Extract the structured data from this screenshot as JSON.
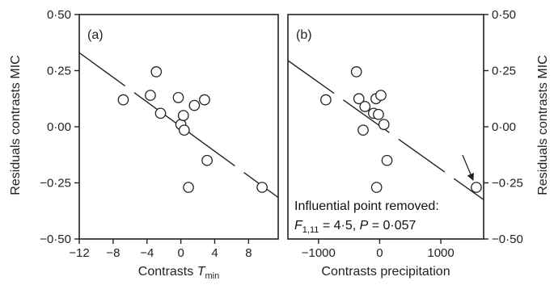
{
  "chart_data": [
    {
      "type": "scatter",
      "panel_label": "(a)",
      "xlabel_main": "Contrasts ",
      "xlabel_italic": "T",
      "xlabel_sub": "min",
      "ylabel": "Residuals contrasts MIC",
      "xlim": [
        -12,
        11.5
      ],
      "ylim": [
        -0.5,
        0.5
      ],
      "x_ticks": [
        -12,
        -8,
        -4,
        0,
        4,
        8
      ],
      "x_tick_labels": [
        "−12",
        "−8",
        "−4",
        "0",
        "4",
        "8"
      ],
      "y_ticks": [
        0.5,
        0.25,
        0.0,
        -0.25,
        -0.5
      ],
      "y_tick_labels": [
        "0·50",
        "0·25",
        "0·00",
        "−0·25",
        "−0·50"
      ],
      "points": [
        {
          "x": -6.8,
          "y": 0.12
        },
        {
          "x": -3.6,
          "y": 0.14
        },
        {
          "x": -2.9,
          "y": 0.245
        },
        {
          "x": -2.4,
          "y": 0.06
        },
        {
          "x": -0.3,
          "y": 0.13
        },
        {
          "x": 0.0,
          "y": 0.01
        },
        {
          "x": 0.3,
          "y": 0.05
        },
        {
          "x": 0.4,
          "y": -0.015
        },
        {
          "x": 1.6,
          "y": 0.095
        },
        {
          "x": 2.8,
          "y": 0.12
        },
        {
          "x": 3.1,
          "y": -0.15
        },
        {
          "x": 0.9,
          "y": -0.27
        },
        {
          "x": 9.6,
          "y": -0.27
        }
      ],
      "fit_line": {
        "x": [
          -12,
          11.5
        ],
        "y": [
          0.33,
          -0.315
        ]
      }
    },
    {
      "type": "scatter",
      "panel_label": "(b)",
      "xlabel": "Contrasts precipitation",
      "ylabel": "Residuals contrasts MIC",
      "xlim": [
        -1500,
        1700
      ],
      "ylim": [
        -0.5,
        0.5
      ],
      "x_ticks": [
        -1000,
        0,
        1000
      ],
      "x_tick_labels": [
        "−1000",
        "0",
        "1000"
      ],
      "y_ticks": [
        0.5,
        0.25,
        0.0,
        -0.25,
        -0.5
      ],
      "y_tick_labels": [
        "0·50",
        "0·25",
        "0·00",
        "−0·25",
        "−0·50"
      ],
      "points": [
        {
          "x": -880,
          "y": 0.12
        },
        {
          "x": -380,
          "y": 0.245
        },
        {
          "x": -340,
          "y": 0.125
        },
        {
          "x": -240,
          "y": 0.09
        },
        {
          "x": -270,
          "y": -0.015
        },
        {
          "x": -100,
          "y": 0.06
        },
        {
          "x": -60,
          "y": 0.125
        },
        {
          "x": -20,
          "y": 0.055
        },
        {
          "x": 20,
          "y": 0.14
        },
        {
          "x": 70,
          "y": 0.01
        },
        {
          "x": 120,
          "y": -0.15
        },
        {
          "x": -50,
          "y": -0.27
        },
        {
          "x": 1580,
          "y": -0.27
        }
      ],
      "fit_line": {
        "x": [
          -1500,
          1700
        ],
        "y": [
          0.295,
          -0.325
        ]
      },
      "annotation_line1": "Influential point removed:",
      "stat_f_italic": "F",
      "stat_f_sub": "1,11",
      "stat_f_rest": " = 4·5, ",
      "stat_p_italic": "P",
      "stat_p_rest": " = 0·057",
      "arrow_target": {
        "x": 1580,
        "y": -0.27
      }
    }
  ]
}
